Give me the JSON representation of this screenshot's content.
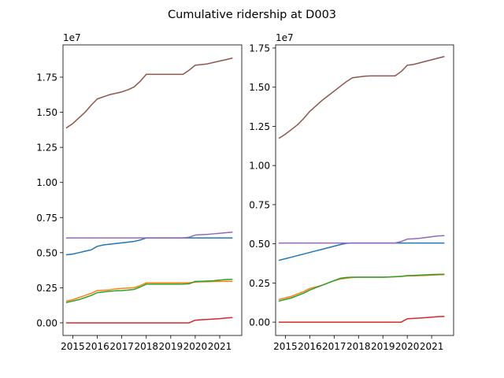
{
  "title": "Cumulative ridership at D003",
  "palette": [
    "#1f77b4",
    "#ff7f0e",
    "#2ca02c",
    "#d62728",
    "#9467bd",
    "#8c564b"
  ],
  "chart_data": [
    {
      "type": "line",
      "x_ticks": [
        "2015",
        "2016",
        "2017",
        "2018",
        "2019",
        "2020",
        "2021"
      ],
      "y_ticks": [
        "0.00",
        "0.25",
        "0.50",
        "0.75",
        "1.00",
        "1.25",
        "1.50",
        "1.75"
      ],
      "y_ticks_values": [
        0,
        2500000,
        5000000,
        7500000,
        10000000,
        12500000,
        15000000,
        17500000
      ],
      "offset_text": "1e7",
      "xlim": [
        2014.6,
        2021.9
      ],
      "ylim": [
        -900000,
        19800000
      ],
      "x": [
        2014.75,
        2015.0,
        2015.25,
        2015.5,
        2015.75,
        2016.0,
        2016.25,
        2016.5,
        2016.75,
        2017.0,
        2017.25,
        2017.5,
        2017.75,
        2018.0,
        2018.25,
        2018.5,
        2018.75,
        2019.0,
        2019.25,
        2019.5,
        2019.75,
        2020.0,
        2020.25,
        2020.5,
        2020.75,
        2021.0,
        2021.25,
        2021.5
      ],
      "series": [
        {
          "values": [
            4850000,
            4900000,
            5000000,
            5100000,
            5200000,
            5450000,
            5550000,
            5600000,
            5650000,
            5700000,
            5750000,
            5800000,
            5900000,
            6050000,
            6050000,
            6050000,
            6050000,
            6050000,
            6050000,
            6050000,
            6050000,
            6050000,
            6050000,
            6050000,
            6050000,
            6050000,
            6050000,
            6050000
          ]
        },
        {
          "values": [
            1550000,
            1650000,
            1800000,
            1950000,
            2100000,
            2300000,
            2320000,
            2350000,
            2420000,
            2450000,
            2480000,
            2500000,
            2650000,
            2850000,
            2850000,
            2850000,
            2850000,
            2850000,
            2850000,
            2850000,
            2850000,
            2900000,
            2920000,
            2930000,
            2940000,
            2950000,
            2960000,
            2960000
          ]
        },
        {
          "values": [
            1450000,
            1550000,
            1650000,
            1800000,
            1950000,
            2150000,
            2200000,
            2250000,
            2280000,
            2300000,
            2330000,
            2380000,
            2550000,
            2750000,
            2750000,
            2750000,
            2750000,
            2750000,
            2750000,
            2760000,
            2780000,
            2950000,
            2960000,
            2980000,
            3000000,
            3050000,
            3080000,
            3100000
          ]
        },
        {
          "values": [
            0,
            0,
            0,
            0,
            0,
            0,
            0,
            0,
            0,
            0,
            0,
            0,
            0,
            0,
            0,
            0,
            0,
            0,
            0,
            0,
            0,
            190000,
            220000,
            240000,
            270000,
            300000,
            340000,
            370000
          ]
        },
        {
          "values": [
            6050000,
            6050000,
            6050000,
            6050000,
            6050000,
            6050000,
            6050000,
            6050000,
            6050000,
            6050000,
            6050000,
            6050000,
            6050000,
            6050000,
            6050000,
            6050000,
            6050000,
            6050000,
            6050000,
            6050000,
            6100000,
            6250000,
            6280000,
            6300000,
            6340000,
            6380000,
            6420000,
            6450000
          ]
        },
        {
          "values": [
            13900000,
            14200000,
            14600000,
            15000000,
            15500000,
            15950000,
            16100000,
            16250000,
            16350000,
            16450000,
            16600000,
            16800000,
            17200000,
            17700000,
            17700000,
            17700000,
            17700000,
            17700000,
            17700000,
            17700000,
            18000000,
            18350000,
            18400000,
            18450000,
            18550000,
            18650000,
            18750000,
            18850000
          ]
        }
      ]
    },
    {
      "type": "line",
      "x_ticks": [
        "2015",
        "2016",
        "2017",
        "2018",
        "2019",
        "2020",
        "2021"
      ],
      "y_ticks": [
        "0.00",
        "0.25",
        "0.50",
        "0.75",
        "1.00",
        "1.25",
        "1.50",
        "1.75"
      ],
      "y_ticks_values": [
        0,
        2500000,
        5000000,
        7500000,
        10000000,
        12500000,
        15000000,
        17500000
      ],
      "offset_text": "1e7",
      "xlim": [
        2014.6,
        2021.9
      ],
      "ylim": [
        -850000,
        17700000
      ],
      "x": [
        2014.75,
        2015.0,
        2015.25,
        2015.5,
        2015.75,
        2016.0,
        2016.25,
        2016.5,
        2016.75,
        2017.0,
        2017.25,
        2017.5,
        2017.75,
        2018.0,
        2018.25,
        2018.5,
        2018.75,
        2019.0,
        2019.25,
        2019.5,
        2019.75,
        2020.0,
        2020.25,
        2020.5,
        2020.75,
        2021.0,
        2021.25,
        2021.5
      ],
      "series": [
        {
          "values": [
            3950000,
            4050000,
            4150000,
            4250000,
            4350000,
            4450000,
            4550000,
            4650000,
            4750000,
            4850000,
            4950000,
            5030000,
            5050000,
            5050000,
            5050000,
            5050000,
            5050000,
            5050000,
            5050000,
            5050000,
            5050000,
            5050000,
            5050000,
            5050000,
            5050000,
            5050000,
            5050000,
            5050000
          ]
        },
        {
          "values": [
            1450000,
            1550000,
            1650000,
            1800000,
            1950000,
            2150000,
            2250000,
            2350000,
            2500000,
            2650000,
            2750000,
            2800000,
            2850000,
            2870000,
            2870000,
            2870000,
            2870000,
            2870000,
            2880000,
            2900000,
            2920000,
            2950000,
            2960000,
            2970000,
            2980000,
            3000000,
            3020000,
            3030000
          ]
        },
        {
          "values": [
            1350000,
            1450000,
            1550000,
            1700000,
            1850000,
            2050000,
            2200000,
            2350000,
            2500000,
            2650000,
            2800000,
            2850000,
            2870000,
            2870000,
            2870000,
            2870000,
            2870000,
            2870000,
            2880000,
            2900000,
            2920000,
            2970000,
            2980000,
            3000000,
            3020000,
            3040000,
            3050000,
            3060000
          ]
        },
        {
          "values": [
            0,
            0,
            0,
            0,
            0,
            0,
            0,
            0,
            0,
            0,
            0,
            0,
            0,
            0,
            0,
            0,
            0,
            0,
            0,
            0,
            0,
            220000,
            240000,
            260000,
            290000,
            320000,
            350000,
            370000
          ]
        },
        {
          "values": [
            5050000,
            5050000,
            5050000,
            5050000,
            5050000,
            5050000,
            5050000,
            5050000,
            5050000,
            5050000,
            5050000,
            5050000,
            5050000,
            5050000,
            5050000,
            5050000,
            5050000,
            5050000,
            5050000,
            5050000,
            5150000,
            5300000,
            5320000,
            5350000,
            5400000,
            5450000,
            5500000,
            5520000
          ]
        },
        {
          "values": [
            11750000,
            12000000,
            12300000,
            12600000,
            13000000,
            13450000,
            13800000,
            14150000,
            14450000,
            14750000,
            15050000,
            15350000,
            15600000,
            15650000,
            15700000,
            15720000,
            15720000,
            15720000,
            15720000,
            15720000,
            16000000,
            16400000,
            16450000,
            16550000,
            16650000,
            16750000,
            16850000,
            16950000
          ]
        }
      ]
    }
  ]
}
